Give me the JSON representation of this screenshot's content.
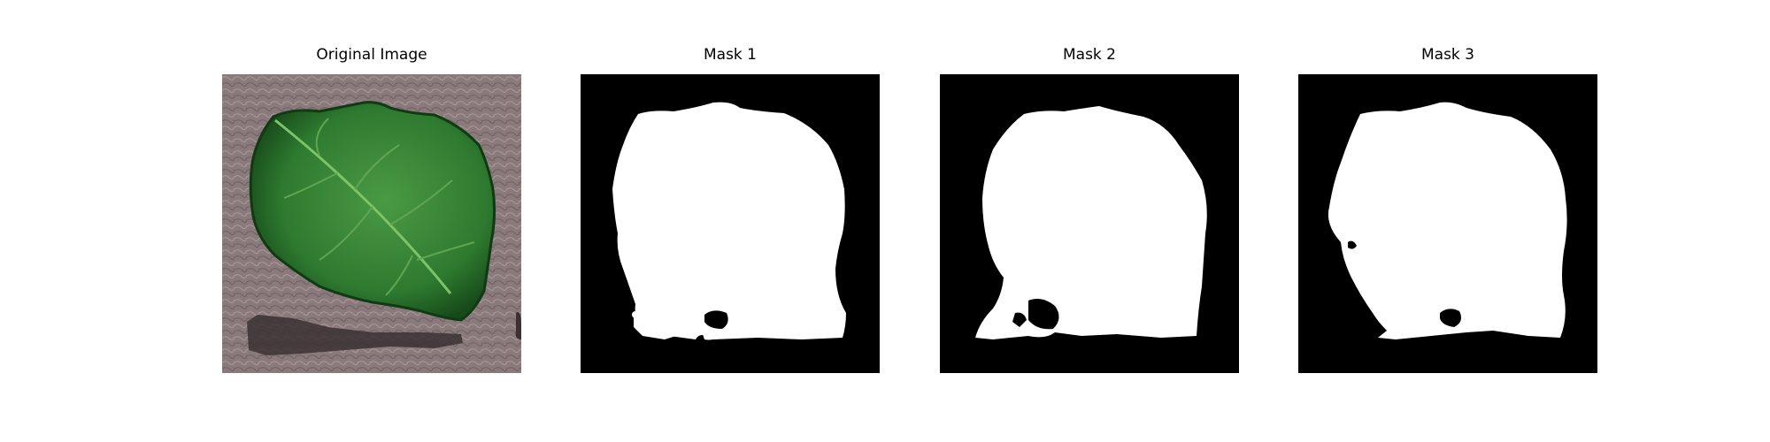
{
  "figure": {
    "panels": [
      {
        "title": "Original Image"
      },
      {
        "title": "Mask 1"
      },
      {
        "title": "Mask 2"
      },
      {
        "title": "Mask 3"
      }
    ]
  },
  "colors": {
    "page_background": "#ffffff",
    "photo_background": "#8a7a7c",
    "leaf_dark": "#1f5a22",
    "leaf_mid": "#3f8f3a",
    "leaf_vein": "#7cc36a",
    "shadow": "#3b3133",
    "mask_background": "#000000",
    "mask_foreground": "#ffffff"
  }
}
